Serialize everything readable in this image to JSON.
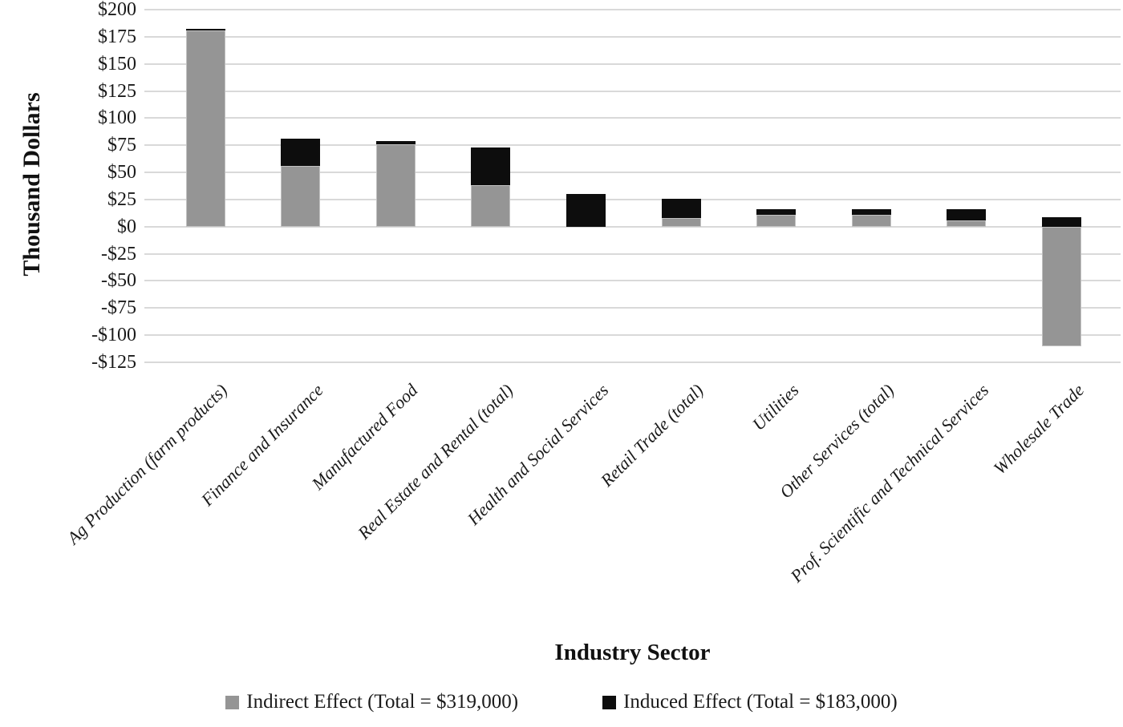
{
  "chart_data": {
    "type": "bar",
    "stacked": true,
    "xlabel": "Industry Sector",
    "ylabel": "Thousand Dollars",
    "ylim": [
      -125,
      200
    ],
    "ytick_step": 25,
    "grid": true,
    "gridline_color": "#d9d9d9",
    "background_color": "#ffffff",
    "legend_position": "bottom",
    "yticks": [
      {
        "label": "$200",
        "value": 200
      },
      {
        "label": "$175",
        "value": 175
      },
      {
        "label": "$150",
        "value": 150
      },
      {
        "label": "$125",
        "value": 125
      },
      {
        "label": "$100",
        "value": 100
      },
      {
        "label": "$75",
        "value": 75
      },
      {
        "label": "$50",
        "value": 50
      },
      {
        "label": "$25",
        "value": 25
      },
      {
        "label": "$0",
        "value": 0
      },
      {
        "label": "-$25",
        "value": -25
      },
      {
        "label": "-$50",
        "value": -50
      },
      {
        "label": "-$75",
        "value": -75
      },
      {
        "label": "-$100",
        "value": -100
      },
      {
        "label": "-$125",
        "value": -125
      }
    ],
    "categories": [
      "Ag Production (farm products)",
      "Finance and Insurance",
      "Manufactured Food",
      "Real Estate and Rental (total)",
      "Health and Social Services",
      "Retail Trade (total)",
      "Utilities",
      "Other Services (total)",
      "Prof. Scientific and Technical Services",
      "Wholesale Trade"
    ],
    "series": [
      {
        "name": "Indirect Effect (Total = $319,000)",
        "color": "#959595",
        "values": [
          181,
          56,
          76,
          38,
          0,
          8,
          11,
          11,
          6,
          -110
        ]
      },
      {
        "name": "Induced Effect (Total = $183,000)",
        "color": "#0d0d0d",
        "values": [
          1.5,
          25,
          3,
          35,
          30,
          18,
          5,
          5,
          10,
          9
        ]
      }
    ]
  }
}
